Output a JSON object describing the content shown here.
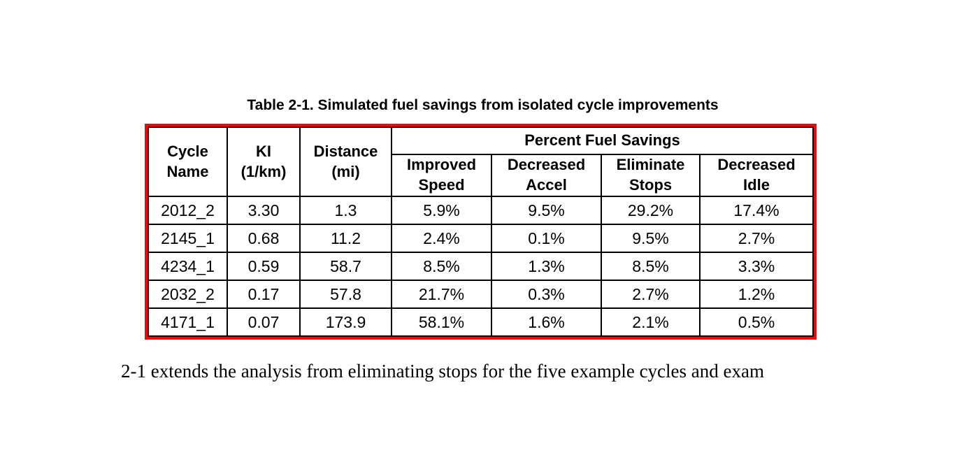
{
  "document": {
    "table_title": "Table 2-1. Simulated fuel savings from isolated cycle improvements",
    "body_text_fragment": "2-1 extends the analysis from eliminating stops for the five example cycles and exam"
  },
  "table": {
    "highlight_border_color": "#ff0000",
    "grid_color": "#000000",
    "group_header": "Percent Fuel Savings",
    "stub_headers": [
      "Cycle\nName",
      "KI\n(1/km)",
      "Distance\n(mi)"
    ],
    "sub_headers": [
      "Improved\nSpeed",
      "Decreased\nAccel",
      "Eliminate\nStops",
      "Decreased\nIdle"
    ],
    "rows": [
      [
        "2012_2",
        "3.30",
        "1.3",
        "5.9%",
        "9.5%",
        "29.2%",
        "17.4%"
      ],
      [
        "2145_1",
        "0.68",
        "11.2",
        "2.4%",
        "0.1%",
        "9.5%",
        "2.7%"
      ],
      [
        "4234_1",
        "0.59",
        "58.7",
        "8.5%",
        "1.3%",
        "8.5%",
        "3.3%"
      ],
      [
        "2032_2",
        "0.17",
        "57.8",
        "21.7%",
        "0.3%",
        "2.7%",
        "1.2%"
      ],
      [
        "4171_1",
        "0.07",
        "173.9",
        "58.1%",
        "1.6%",
        "2.1%",
        "0.5%"
      ]
    ]
  }
}
